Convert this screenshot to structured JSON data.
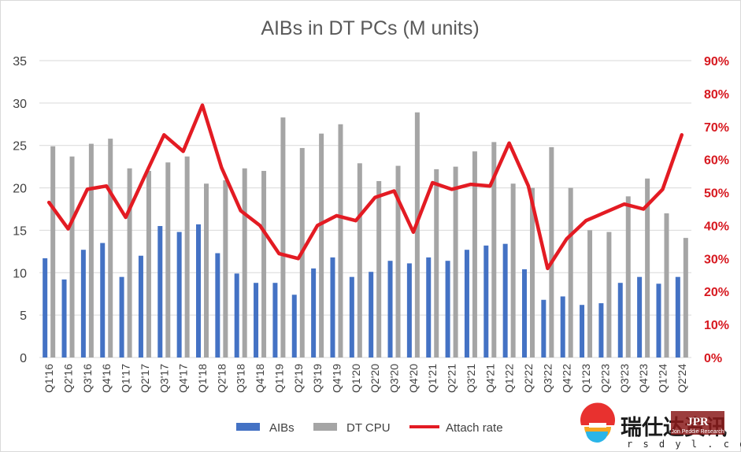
{
  "chart_data": {
    "type": "bar",
    "title": "AIBs in DT PCs (M units)",
    "categories": [
      "Q1'16",
      "Q2'16",
      "Q3'16",
      "Q4'16",
      "Q1'17",
      "Q2'17",
      "Q3'17",
      "Q4'17",
      "Q1'18",
      "Q2'18",
      "Q3'18",
      "Q4'18",
      "Q1'19",
      "Q2'19",
      "Q3'19",
      "Q4'19",
      "Q1'20",
      "Q2'20",
      "Q3'20",
      "Q4'20",
      "Q1'21",
      "Q2'21",
      "Q3'21",
      "Q4'21",
      "Q1'22",
      "Q2'22",
      "Q3'22",
      "Q4'22",
      "Q1'23",
      "Q2'23",
      "Q3'23",
      "Q4'23",
      "Q1'24",
      "Q2'24"
    ],
    "left_axis": {
      "ylim": [
        0,
        35
      ],
      "ticks": [
        "0",
        "5",
        "10",
        "15",
        "20",
        "25",
        "30",
        "35"
      ]
    },
    "right_axis": {
      "ylim": [
        0,
        90
      ],
      "ticks": [
        "0%",
        "10%",
        "20%",
        "30%",
        "40%",
        "50%",
        "60%",
        "70%",
        "80%",
        "90%"
      ]
    },
    "grid": true,
    "legend_position": "bottom",
    "series": [
      {
        "name": "AIBs",
        "type": "bar",
        "axis": "left",
        "color": "#4472c4",
        "values": [
          11.7,
          9.2,
          12.7,
          13.5,
          9.5,
          12.0,
          15.5,
          14.8,
          15.7,
          12.3,
          9.9,
          8.8,
          8.8,
          7.4,
          10.5,
          11.8,
          9.5,
          10.1,
          11.4,
          11.1,
          11.8,
          11.4,
          12.7,
          13.2,
          13.4,
          10.4,
          6.8,
          7.2,
          6.2,
          6.4,
          8.8,
          9.5,
          8.7,
          9.5
        ]
      },
      {
        "name": "DT CPU",
        "type": "bar",
        "axis": "left",
        "color": "#a5a5a5",
        "values": [
          24.9,
          23.7,
          25.2,
          25.8,
          22.3,
          22.0,
          23.0,
          23.7,
          20.5,
          20.9,
          22.3,
          22.0,
          28.3,
          24.7,
          26.4,
          27.5,
          22.9,
          20.8,
          22.6,
          28.9,
          22.2,
          22.5,
          24.3,
          25.4,
          20.5,
          20.0,
          24.8,
          20.0,
          15.0,
          14.8,
          19.0,
          21.1,
          17.0,
          14.1
        ]
      },
      {
        "name": "Attach rate",
        "type": "line",
        "axis": "right",
        "color": "#e31b23",
        "values": [
          47,
          39,
          51,
          52,
          42.5,
          55,
          67.5,
          62.5,
          76.5,
          57.5,
          44.5,
          40,
          31.5,
          30,
          40,
          43,
          41.5,
          48.5,
          50.5,
          38,
          53,
          51,
          52.5,
          52,
          65,
          52,
          27,
          36,
          41.5,
          44,
          46.5,
          45,
          51,
          67.5
        ]
      }
    ]
  },
  "watermark": {
    "cn_text": "瑞仕达资讯",
    "url_text": "r s d y l . c o m",
    "badge_text": "JPR",
    "badge_small_text": "Jon Peddie Research"
  }
}
